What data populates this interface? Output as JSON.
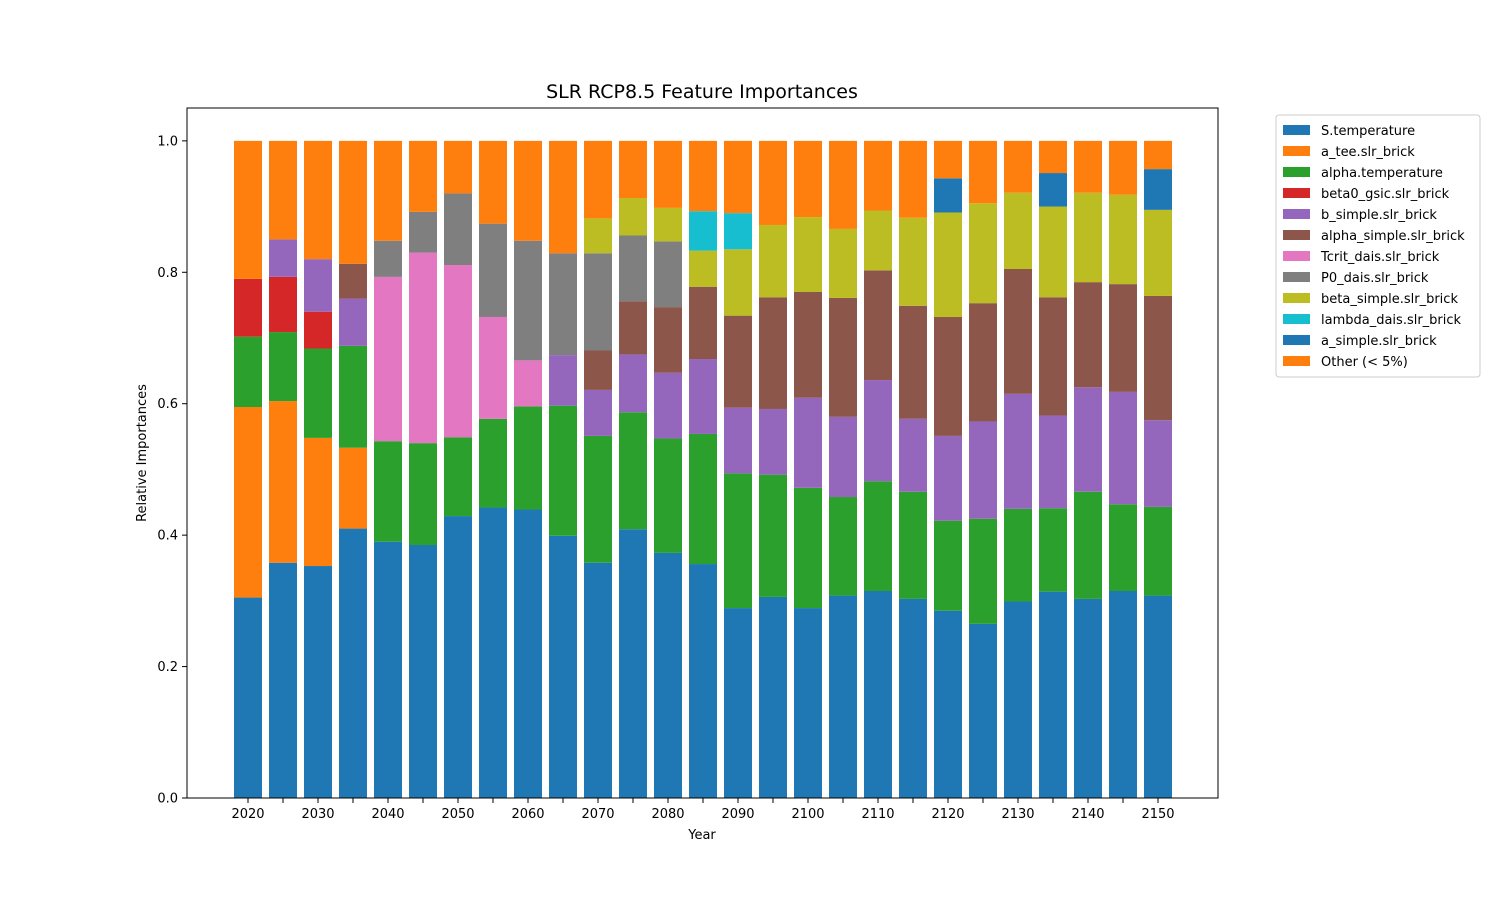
{
  "chart_data": {
    "type": "bar",
    "stacked": true,
    "title": "SLR RCP8.5 Feature Importances",
    "xlabel": "Year",
    "ylabel": "Relative Importances",
    "ylim": [
      0,
      1.05
    ],
    "yticks": [
      0.0,
      0.2,
      0.4,
      0.6,
      0.8,
      1.0
    ],
    "xtick_labels": [
      "2020",
      "2030",
      "2040",
      "2050",
      "2060",
      "2070",
      "2080",
      "2090",
      "2100",
      "2110",
      "2120",
      "2130",
      "2140",
      "2150"
    ],
    "legend_position": "outside-top-right",
    "categories": [
      2020,
      2025,
      2030,
      2035,
      2040,
      2045,
      2050,
      2055,
      2060,
      2065,
      2070,
      2075,
      2080,
      2085,
      2090,
      2095,
      2100,
      2105,
      2110,
      2115,
      2120,
      2125,
      2130,
      2135,
      2140,
      2145,
      2150
    ],
    "series": [
      {
        "name": "S.temperature",
        "color": "#1f77b4",
        "values": [
          0.305,
          0.358,
          0.353,
          0.41,
          0.39,
          0.385,
          0.429,
          0.442,
          0.439,
          0.399,
          0.358,
          0.409,
          0.373,
          0.356,
          0.289,
          0.306,
          0.289,
          0.308,
          0.315,
          0.303,
          0.285,
          0.265,
          0.299,
          0.314,
          0.303,
          0.315,
          0.308
        ]
      },
      {
        "name": "a_tee.slr_brick",
        "color": "#ff7f0e",
        "values": [
          0.29,
          0.246,
          0.195,
          0.123,
          0,
          0,
          0,
          0,
          0,
          0,
          0,
          0,
          0,
          0,
          0,
          0,
          0,
          0,
          0,
          0,
          0,
          0,
          0,
          0,
          0,
          0,
          0
        ]
      },
      {
        "name": "alpha.temperature",
        "color": "#2ca02c",
        "values": [
          0.107,
          0.105,
          0.136,
          0.155,
          0.153,
          0.155,
          0.12,
          0.135,
          0.157,
          0.198,
          0.193,
          0.178,
          0.174,
          0.198,
          0.205,
          0.186,
          0.183,
          0.15,
          0.167,
          0.163,
          0.137,
          0.16,
          0.141,
          0.127,
          0.163,
          0.132,
          0.135
        ]
      },
      {
        "name": "beta0_gsic.slr_brick",
        "color": "#d62728",
        "values": [
          0.088,
          0.084,
          0.056,
          0,
          0,
          0,
          0,
          0,
          0,
          0,
          0,
          0,
          0,
          0,
          0,
          0,
          0,
          0,
          0,
          0,
          0,
          0,
          0,
          0,
          0,
          0,
          0
        ]
      },
      {
        "name": "b_simple.slr_brick",
        "color": "#9467bd",
        "values": [
          0,
          0.057,
          0.08,
          0.072,
          0,
          0,
          0,
          0,
          0,
          0.077,
          0.07,
          0.088,
          0.1,
          0.114,
          0.1,
          0.1,
          0.137,
          0.122,
          0.154,
          0.111,
          0.129,
          0.148,
          0.175,
          0.141,
          0.159,
          0.171,
          0.132
        ]
      },
      {
        "name": "alpha_simple.slr_brick",
        "color": "#8c564b",
        "values": [
          0,
          0,
          0,
          0.053,
          0,
          0,
          0,
          0,
          0,
          0,
          0.06,
          0.081,
          0.1,
          0.11,
          0.14,
          0.17,
          0.161,
          0.181,
          0.167,
          0.172,
          0.181,
          0.18,
          0.19,
          0.18,
          0.16,
          0.164,
          0.189
        ]
      },
      {
        "name": "Tcrit_dais.slr_brick",
        "color": "#e377c2",
        "values": [
          0,
          0,
          0,
          0,
          0.25,
          0.29,
          0.262,
          0.155,
          0.07,
          0,
          0,
          0,
          0,
          0,
          0,
          0,
          0,
          0,
          0,
          0,
          0,
          0,
          0,
          0,
          0,
          0,
          0
        ]
      },
      {
        "name": "P0_dais.slr_brick",
        "color": "#7f7f7f",
        "values": [
          0,
          0,
          0,
          0,
          0.055,
          0.062,
          0.109,
          0.142,
          0.182,
          0.155,
          0.148,
          0.1,
          0.1,
          0,
          0,
          0,
          0,
          0,
          0,
          0,
          0,
          0,
          0,
          0,
          0,
          0,
          0
        ]
      },
      {
        "name": "beta_simple.slr_brick",
        "color": "#bcbd22",
        "values": [
          0,
          0,
          0,
          0,
          0,
          0,
          0,
          0,
          0,
          0,
          0.053,
          0.057,
          0.051,
          0.055,
          0.101,
          0.11,
          0.114,
          0.105,
          0.091,
          0.134,
          0.159,
          0.152,
          0.116,
          0.138,
          0.136,
          0.136,
          0.131
        ]
      },
      {
        "name": "lambda_dais.slr_brick",
        "color": "#17becf",
        "values": [
          0,
          0,
          0,
          0,
          0,
          0,
          0,
          0,
          0,
          0,
          0,
          0,
          0,
          0.06,
          0.055,
          0,
          0,
          0,
          0,
          0,
          0,
          0,
          0,
          0,
          0,
          0,
          0
        ]
      },
      {
        "name": "a_simple.slr_brick",
        "color": "#1f77b4",
        "values": [
          0,
          0,
          0,
          0,
          0,
          0,
          0,
          0,
          0,
          0,
          0,
          0,
          0,
          0,
          0,
          0,
          0,
          0,
          0,
          0,
          0.052,
          0,
          0,
          0.051,
          0,
          0,
          0.062
        ]
      },
      {
        "name": "Other (< 5%)",
        "color": "#ff7f0e",
        "values": [
          0.21,
          0.15,
          0.18,
          0.187,
          0.152,
          0.108,
          0.08,
          0.126,
          0.152,
          0.171,
          0.118,
          0.087,
          0.102,
          0.107,
          0.11,
          0.128,
          0.116,
          0.134,
          0.106,
          0.117,
          0.057,
          0.095,
          0.079,
          0.049,
          0.079,
          0.082,
          0.043
        ]
      }
    ]
  }
}
